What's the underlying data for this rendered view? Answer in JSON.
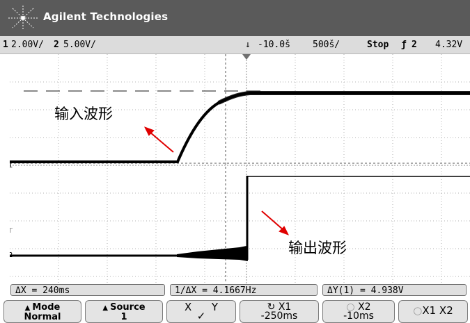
{
  "header": {
    "brand": "Agilent Technologies"
  },
  "status": {
    "ch1_num": "1",
    "ch1_scale": "2.00V/",
    "ch2_num": "2",
    "ch2_scale": "5.00V/",
    "delay": "-10.0š",
    "timebase": "500š/",
    "run_state": "Stop",
    "trig_channel": "2",
    "trig_level": "4.32V"
  },
  "waveform_labels": {
    "input": "输入波形",
    "output": "输出波形"
  },
  "markers": {
    "ch1": "1",
    "ch2": "2",
    "trigger": "T"
  },
  "measurements": {
    "delta_x": "ΔX = 240ms",
    "inv_delta_x": "1/ΔX = 4.1667Hz",
    "delta_y": "ΔY(1) = 4.938V"
  },
  "softkeys": {
    "mode_title": "Mode",
    "mode_value": "Normal",
    "source_title": "Source",
    "source_value": "1",
    "xy_x": "X",
    "xy_y": "Y",
    "xy_check": "✓",
    "x1_title": "X1",
    "x1_value": "-250ms",
    "x2_title": "X2",
    "x2_value": "-10ms",
    "x1x2_label": "X1  X2"
  },
  "colors": {
    "title_bg": "#5a5a5a",
    "status_bg": "#dcdcdc",
    "trace": "#000000",
    "arrow": "#e00000"
  }
}
